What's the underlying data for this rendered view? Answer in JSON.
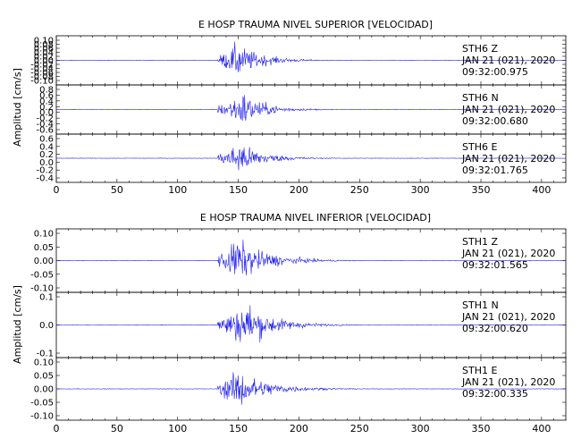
{
  "chart_data": [
    {
      "type": "line",
      "title": "E HOSP TRAUMA NIVEL SUPERIOR [VELOCIDAD]",
      "ylabel": "Amplitud [cm/s]",
      "xlabel": "",
      "xlim": [
        0,
        420
      ],
      "xticks": [
        0,
        50,
        100,
        150,
        200,
        250,
        300,
        350,
        400
      ],
      "panels": [
        {
          "station": "STH6",
          "component": "Z",
          "date": "JAN 21 (021), 2020",
          "time": "09:32:00.975",
          "ylim": [
            -0.11,
            0.11
          ],
          "yticks": [
            "0.10",
            "0.08",
            "0.06",
            "0.04",
            "0.02",
            "0.00",
            "-0.02",
            "-0.04",
            "-0.06",
            "-0.08",
            "-0.10"
          ],
          "onset_s": 133,
          "peak_s": 150,
          "peak_amplitude": 0.11,
          "coda_end_s": 215
        },
        {
          "station": "STH6",
          "component": "N",
          "date": "JAN 21 (021), 2020",
          "time": "09:32:00.680",
          "ylim": [
            -0.2,
            0.2
          ],
          "yticks": [
            "0.8",
            "0.6",
            "0.4",
            "0.2",
            "0.0",
            "-0.2",
            "-0.4",
            "-0.6"
          ],
          "onset_s": 133,
          "peak_s": 155,
          "peak_amplitude": 0.2,
          "coda_end_s": 215
        },
        {
          "station": "STH6",
          "component": "E",
          "date": "JAN 21 (021), 2020",
          "time": "09:32:01.765",
          "ylim": [
            -0.45,
            0.45
          ],
          "yticks": [
            "0.6",
            "0.4",
            "0.2",
            "0.0",
            "-0.2",
            "-0.4"
          ],
          "onset_s": 133,
          "peak_s": 152,
          "peak_amplitude": 0.45,
          "coda_end_s": 215
        }
      ]
    },
    {
      "type": "line",
      "title": "E HOSP TRAUMA NIVEL INFERIOR [VELOCIDAD]",
      "ylabel": "Amplitud [cm/s]",
      "xlabel": "",
      "xlim": [
        0,
        420
      ],
      "xticks": [
        0,
        50,
        100,
        150,
        200,
        250,
        300,
        350,
        400
      ],
      "panels": [
        {
          "station": "STH1",
          "component": "Z",
          "date": "JAN 21 (021), 2020",
          "time": "09:32:01.565",
          "ylim": [
            -0.12,
            0.12
          ],
          "yticks": [
            "0.10",
            "0.05",
            "0.00",
            "-0.05",
            "-0.10"
          ],
          "onset_s": 133,
          "peak_s": 150,
          "peak_amplitude": 0.12,
          "coda_end_s": 230
        },
        {
          "station": "STH1",
          "component": "N",
          "date": "JAN 21 (021), 2020",
          "time": "09:32:00.620",
          "ylim": [
            -0.16,
            0.16
          ],
          "yticks": [
            "0.1",
            "0.0",
            "-0.1"
          ],
          "onset_s": 133,
          "peak_s": 157,
          "peak_amplitude": 0.16,
          "coda_end_s": 230
        },
        {
          "station": "STH1",
          "component": "E",
          "date": "JAN 21 (021), 2020",
          "time": "09:32:00.335",
          "ylim": [
            -0.12,
            0.12
          ],
          "yticks": [
            "0.10",
            "0.05",
            "0.00",
            "-0.05",
            "-0.10"
          ],
          "onset_s": 133,
          "peak_s": 150,
          "peak_amplitude": 0.11,
          "coda_end_s": 230
        }
      ]
    }
  ],
  "colors": {
    "trace": "#1010ee",
    "axes": "#000000",
    "text": "#000000"
  }
}
